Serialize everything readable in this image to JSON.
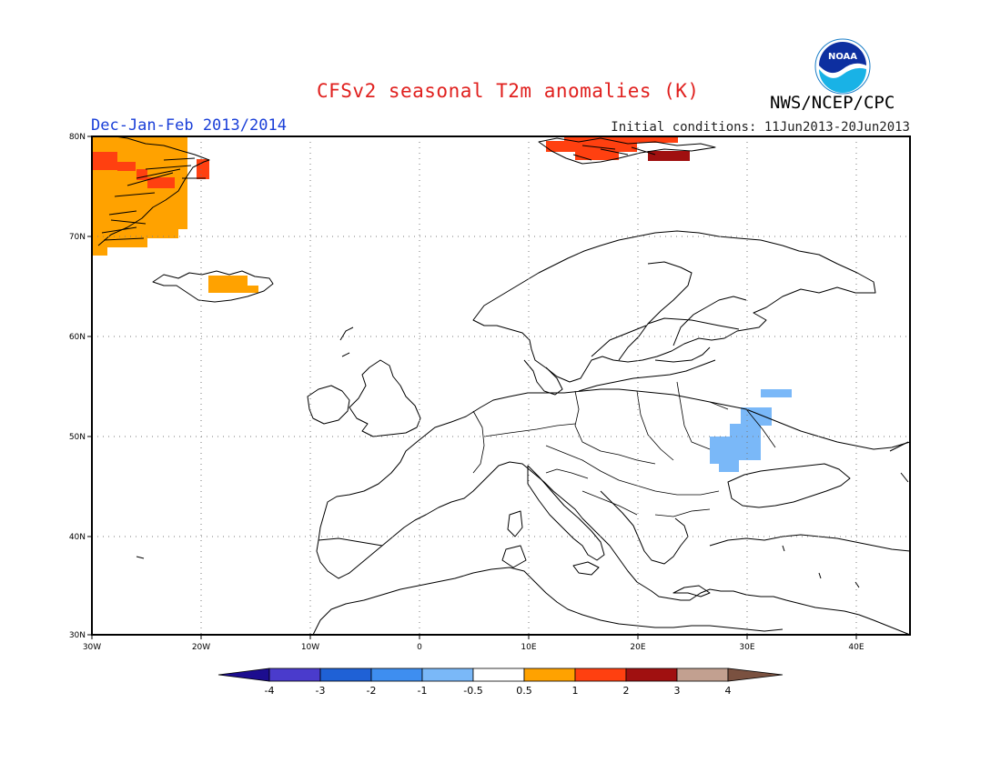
{
  "header": {
    "title": "CFSv2 seasonal T2m anomalies (K)",
    "subtitle": "Dec-Jan-Feb 2013/2014",
    "initial_conditions": "Initial conditions: 11Jun2013-20Jun2013",
    "agency": "NWS/NCEP/CPC",
    "logo_text": "NOAA"
  },
  "map": {
    "region": "Europe",
    "lon_range": [
      -30,
      45
    ],
    "lat_range": [
      30,
      80
    ],
    "grid": true,
    "lat_labels": [
      "80N",
      "70N",
      "60N",
      "50N",
      "40N",
      "30N"
    ],
    "lon_labels": [
      "30W",
      "20W",
      "10W",
      "0",
      "10E",
      "20E",
      "30E",
      "40E"
    ],
    "anomaly_areas": [
      {
        "region": "Greenland east coast",
        "category": "0.5 to 1"
      },
      {
        "region": "Greenland east coast",
        "category": "1 to 2"
      },
      {
        "region": "Iceland",
        "category": "0.5 to 1"
      },
      {
        "region": "Svalbard",
        "category": "1 to 2"
      },
      {
        "region": "Svalbard",
        "category": "2 to 3"
      },
      {
        "region": "Ukraine / Black Sea north",
        "category": "-1 to -0.5"
      }
    ]
  },
  "colorbar": {
    "labels": [
      "-4",
      "-3",
      "-2",
      "-1",
      "-0.5",
      "0.5",
      "1",
      "2",
      "3",
      "4"
    ],
    "colors": [
      "#1c0d8f",
      "#4a3bcc",
      "#1f61d6",
      "#3e8ef0",
      "#7ab8f8",
      "#ffffff",
      "#ffa200",
      "#ff4010",
      "#a01010",
      "#c2a090",
      "#7a5140"
    ]
  }
}
